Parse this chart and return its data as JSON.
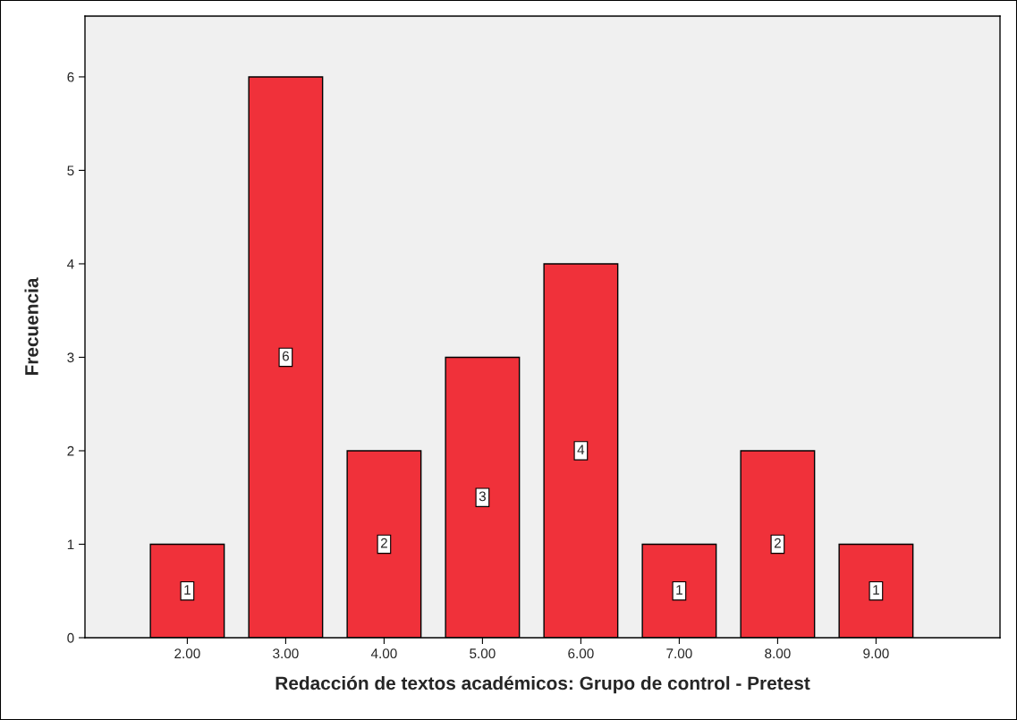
{
  "chart_data": {
    "type": "bar",
    "xlabel": "Redacción de textos académicos: Grupo de control - Pretest",
    "ylabel": "Frecuencia",
    "categories": [
      "2.00",
      "3.00",
      "4.00",
      "5.00",
      "6.00",
      "7.00",
      "8.00",
      "9.00"
    ],
    "values": [
      1,
      6,
      2,
      3,
      4,
      1,
      2,
      1
    ],
    "color": "#f0313a",
    "ylim": [
      0,
      6.65
    ],
    "yticks": [
      0,
      1,
      2,
      3,
      4,
      5,
      6
    ],
    "grid": false,
    "data_labels": true
  }
}
